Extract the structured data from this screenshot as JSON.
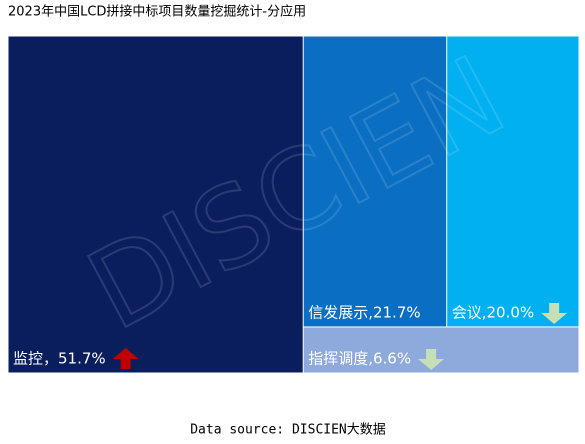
{
  "chart_data": {
    "type": "treemap",
    "title": "2023年中国LCD拼接中标项目数量挖掘统计-分应用",
    "values": [
      51.7,
      21.7,
      20.0,
      6.6
    ],
    "value_labels": [
      "监控，51.7%",
      "信发展示,21.7%",
      "会议,20.0%",
      "指挥调度,6.6%"
    ],
    "colors": [
      "#0a1e5e",
      "#0a6fc2",
      "#00b0f0",
      "#8eaadc"
    ],
    "trend": [
      "up",
      null,
      "down",
      "down"
    ],
    "trend_colors": {
      "up": "#c00000",
      "down": "#c5e0b4"
    },
    "watermark": "DISCIEN",
    "source": "Data source: DISCIEN大数据"
  }
}
